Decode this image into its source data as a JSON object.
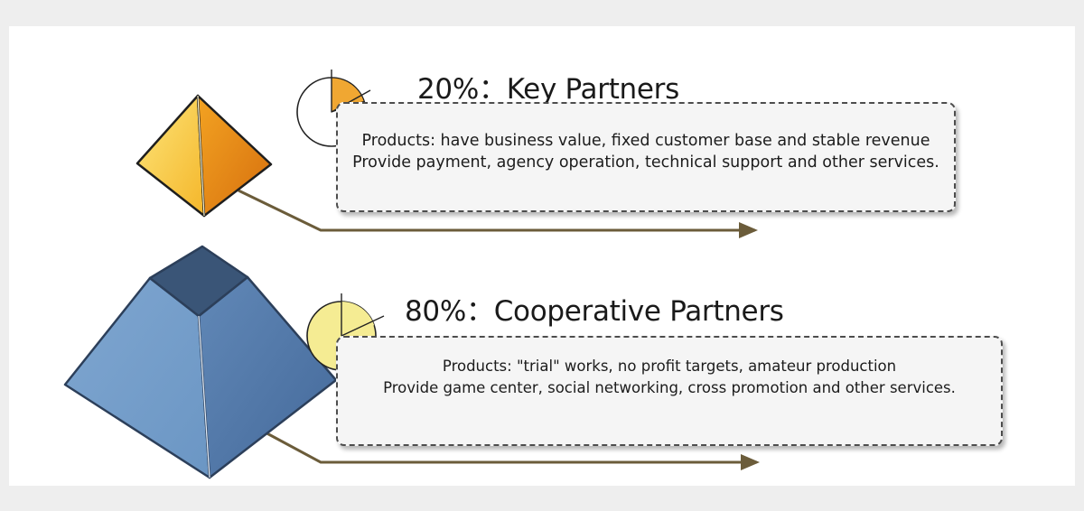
{
  "tiers": [
    {
      "percent_label": "20%：Key Partners",
      "share": 0.2,
      "pie_color": "#f0a732",
      "pyramid_color": "#f0a01e",
      "description": [
        "Products: have business value, fixed customer base and stable revenue",
        "Provide payment, agency operation, technical support and other services."
      ]
    },
    {
      "percent_label": "80%：Cooperative Partners",
      "share": 0.8,
      "pie_color": "#f5ec93",
      "pyramid_color": "#5b86b4",
      "description": [
        "Products: \"trial\" works, no profit targets, amateur production",
        "Provide game center, social networking, cross promotion and other services."
      ]
    }
  ],
  "colors": {
    "connector": "#6b5c3a",
    "card_border": "#4d4d4d",
    "card_fill": "#f5f5f5"
  }
}
